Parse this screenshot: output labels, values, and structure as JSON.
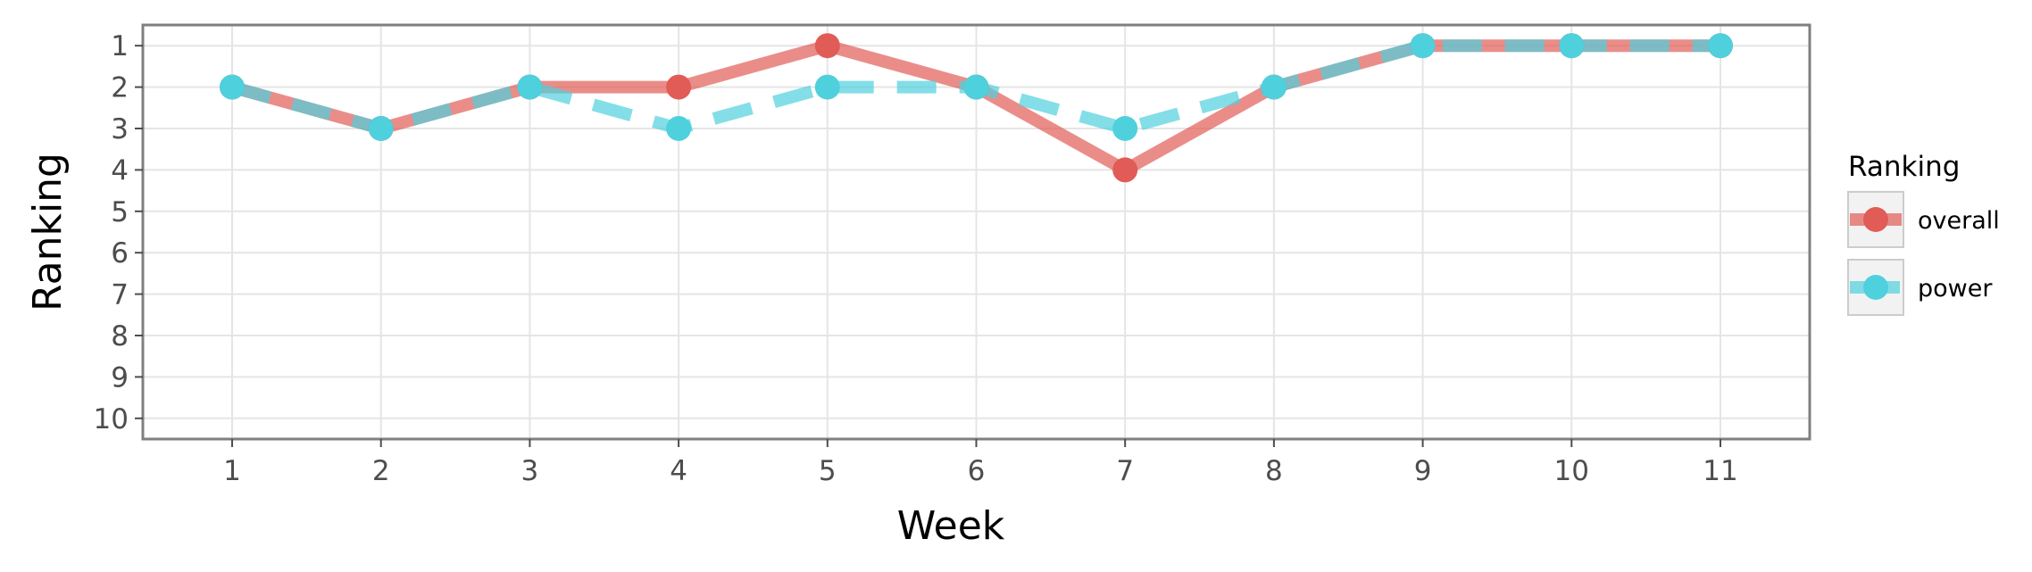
{
  "chart_data": {
    "type": "line",
    "xlabel": "Week",
    "ylabel": "Ranking",
    "x": [
      1,
      2,
      3,
      4,
      5,
      6,
      7,
      8,
      9,
      10,
      11
    ],
    "xlim": [
      0.4,
      11.6
    ],
    "ylim": [
      10.5,
      0.5
    ],
    "y_reversed": true,
    "x_ticks": [
      "1",
      "2",
      "3",
      "4",
      "5",
      "6",
      "7",
      "8",
      "9",
      "10",
      "11"
    ],
    "y_ticks": [
      "1",
      "2",
      "3",
      "4",
      "5",
      "6",
      "7",
      "8",
      "9",
      "10"
    ],
    "grid": true,
    "legend": {
      "title": "Ranking",
      "position": "right"
    },
    "series": [
      {
        "name": "overall",
        "values": [
          2,
          3,
          2,
          2,
          1,
          2,
          4,
          2,
          1,
          1,
          1
        ],
        "color": "#E15C57",
        "linestyle": "solid"
      },
      {
        "name": "power",
        "values": [
          2,
          3,
          2,
          3,
          2,
          2,
          3,
          2,
          1,
          1,
          1
        ],
        "color": "#4FD0DD",
        "linestyle": "dashed"
      }
    ]
  }
}
